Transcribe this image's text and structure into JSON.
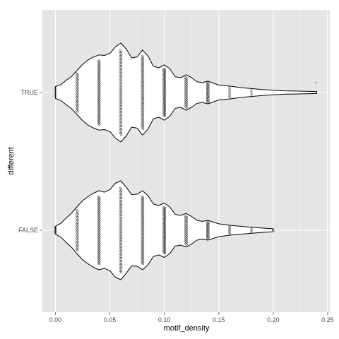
{
  "chart_data": {
    "type": "violin",
    "xlabel": "motif_density",
    "ylabel": "different",
    "xlim": [
      -0.012,
      0.252
    ],
    "x_ticks": [
      "0.00",
      "0.05",
      "0.10",
      "0.15",
      "0.20",
      "0.25"
    ],
    "x_tick_values": [
      0,
      0.05,
      0.1,
      0.15,
      0.2,
      0.25
    ],
    "categories": [
      "TRUE",
      "FALSE"
    ],
    "grid": true,
    "legend": "none",
    "colors": {
      "panel": "#e5e5e5",
      "grid": "#ffffff",
      "violin_fill": "#ffffff",
      "violin_line": "#000000",
      "points": "#333333"
    },
    "series": [
      {
        "category": "TRUE",
        "range": [
          0,
          0.24
        ],
        "density_profile": [
          [
            0,
            0.12
          ],
          [
            0.005,
            0.16
          ],
          [
            0.01,
            0.25
          ],
          [
            0.015,
            0.33
          ],
          [
            0.02,
            0.45
          ],
          [
            0.025,
            0.57
          ],
          [
            0.03,
            0.66
          ],
          [
            0.035,
            0.72
          ],
          [
            0.04,
            0.76
          ],
          [
            0.045,
            0.75
          ],
          [
            0.05,
            0.79
          ],
          [
            0.055,
            0.92
          ],
          [
            0.06,
            1.0
          ],
          [
            0.065,
            0.88
          ],
          [
            0.07,
            0.7
          ],
          [
            0.075,
            0.72
          ],
          [
            0.08,
            0.86
          ],
          [
            0.085,
            0.74
          ],
          [
            0.09,
            0.53
          ],
          [
            0.095,
            0.5
          ],
          [
            0.1,
            0.56
          ],
          [
            0.105,
            0.48
          ],
          [
            0.11,
            0.32
          ],
          [
            0.115,
            0.3
          ],
          [
            0.12,
            0.36
          ],
          [
            0.125,
            0.3
          ],
          [
            0.13,
            0.22
          ],
          [
            0.135,
            0.2
          ],
          [
            0.14,
            0.23
          ],
          [
            0.15,
            0.15
          ],
          [
            0.16,
            0.13
          ],
          [
            0.17,
            0.1
          ],
          [
            0.18,
            0.08
          ],
          [
            0.19,
            0.06
          ],
          [
            0.2,
            0.045
          ],
          [
            0.21,
            0.035
          ],
          [
            0.22,
            0.03
          ],
          [
            0.23,
            0.025
          ],
          [
            0.24,
            0.02
          ]
        ],
        "point_columns": [
          {
            "x": 0,
            "n": 12,
            "spread": 0.85
          },
          {
            "x": 0.02,
            "n": 30,
            "spread": 0.85
          },
          {
            "x": 0.04,
            "n": 60,
            "spread": 0.85
          },
          {
            "x": 0.06,
            "n": 60,
            "spread": 0.85
          },
          {
            "x": 0.08,
            "n": 60,
            "spread": 0.85
          },
          {
            "x": 0.1,
            "n": 60,
            "spread": 0.85
          },
          {
            "x": 0.12,
            "n": 30,
            "spread": 0.85
          },
          {
            "x": 0.14,
            "n": 24,
            "spread": 0.85
          },
          {
            "x": 0.16,
            "n": 12,
            "spread": 0.85
          },
          {
            "x": 0.18,
            "n": 6,
            "spread": 0.85
          },
          {
            "x": 0.24,
            "n": 1,
            "spread": 0
          }
        ]
      },
      {
        "category": "FALSE",
        "range": [
          0,
          0.2
        ],
        "density_profile": [
          [
            0,
            0.08
          ],
          [
            0.005,
            0.14
          ],
          [
            0.01,
            0.25
          ],
          [
            0.015,
            0.35
          ],
          [
            0.02,
            0.48
          ],
          [
            0.025,
            0.6
          ],
          [
            0.03,
            0.68
          ],
          [
            0.035,
            0.75
          ],
          [
            0.04,
            0.8
          ],
          [
            0.045,
            0.77
          ],
          [
            0.05,
            0.82
          ],
          [
            0.055,
            0.95
          ],
          [
            0.06,
            1.0
          ],
          [
            0.065,
            0.87
          ],
          [
            0.07,
            0.72
          ],
          [
            0.075,
            0.73
          ],
          [
            0.08,
            0.8
          ],
          [
            0.085,
            0.7
          ],
          [
            0.09,
            0.53
          ],
          [
            0.095,
            0.5
          ],
          [
            0.1,
            0.55
          ],
          [
            0.105,
            0.47
          ],
          [
            0.11,
            0.32
          ],
          [
            0.115,
            0.3
          ],
          [
            0.12,
            0.34
          ],
          [
            0.125,
            0.28
          ],
          [
            0.13,
            0.2
          ],
          [
            0.135,
            0.18
          ],
          [
            0.14,
            0.2
          ],
          [
            0.15,
            0.13
          ],
          [
            0.16,
            0.1
          ],
          [
            0.17,
            0.08
          ],
          [
            0.18,
            0.06
          ],
          [
            0.19,
            0.045
          ],
          [
            0.2,
            0.03
          ]
        ],
        "point_columns": [
          {
            "x": 0,
            "n": 14,
            "spread": 0.85
          },
          {
            "x": 0.02,
            "n": 30,
            "spread": 0.85
          },
          {
            "x": 0.04,
            "n": 60,
            "spread": 0.85
          },
          {
            "x": 0.06,
            "n": 60,
            "spread": 0.85
          },
          {
            "x": 0.08,
            "n": 60,
            "spread": 0.85
          },
          {
            "x": 0.1,
            "n": 60,
            "spread": 0.85
          },
          {
            "x": 0.12,
            "n": 30,
            "spread": 0.85
          },
          {
            "x": 0.14,
            "n": 22,
            "spread": 0.85
          },
          {
            "x": 0.16,
            "n": 12,
            "spread": 0.85
          },
          {
            "x": 0.18,
            "n": 6,
            "spread": 0.85
          },
          {
            "x": 0.2,
            "n": 2,
            "spread": 0.2
          }
        ]
      }
    ]
  }
}
